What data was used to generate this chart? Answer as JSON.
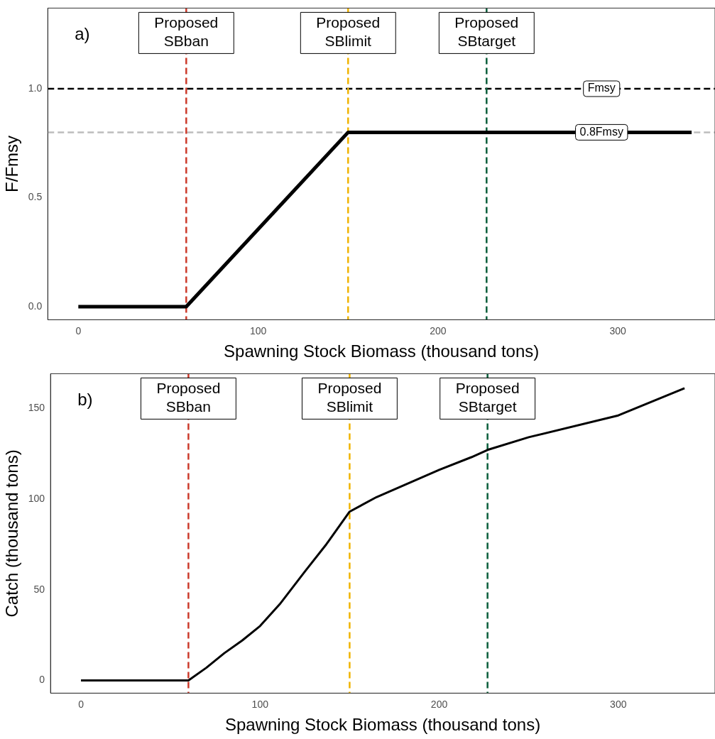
{
  "chart_data": [
    {
      "type": "line",
      "xlabel": "Spawning Stock Biomass (thousand tons)",
      "ylabel": "F/Fmsy",
      "annotations": [
        "a)"
      ],
      "x": [
        0,
        60,
        150,
        341
      ],
      "series": [
        {
          "color": "#000000",
          "values": [
            0,
            0,
            0.8,
            0.8
          ]
        }
      ],
      "xlim": [
        -17,
        354
      ],
      "xticks": [
        0,
        100,
        200,
        300
      ],
      "ylim": [
        -0.06,
        1.37
      ],
      "yticks": [
        {
          "value": 0,
          "label": "0.0"
        },
        {
          "value": 0.5,
          "label": "0.5"
        },
        {
          "value": 1,
          "label": "1.0"
        }
      ],
      "ref_lines": [
        {
          "axis": "y",
          "value": 1,
          "label": "Fmsy",
          "color": "#000000",
          "line_style": "dashed"
        },
        {
          "axis": "y",
          "value": 0.8,
          "label": "0.8Fmsy",
          "color": "#bdbdbd",
          "line_style": "dashed"
        },
        {
          "axis": "x",
          "value": 60,
          "label": "Proposed SBban",
          "color": "#cc3a2b",
          "line_style": "dashed"
        },
        {
          "axis": "x",
          "value": 150,
          "label": "Proposed SBlimit",
          "color": "#f0b400",
          "line_style": "dashed"
        },
        {
          "axis": "x",
          "value": 227,
          "label": "Proposed SBtarget",
          "color": "#0b5e3b",
          "line_style": "dashed"
        }
      ]
    },
    {
      "type": "line",
      "xlabel": "Spawning Stock Biomass (thousand tons)",
      "ylabel": "Catch (thousand tons)",
      "annotations": [
        "b)"
      ],
      "x": [
        0,
        60,
        70,
        80,
        90,
        100,
        111,
        125,
        137,
        150,
        165,
        200,
        218,
        227,
        250,
        300,
        337
      ],
      "series": [
        {
          "color": "#000000",
          "values": [
            0,
            0,
            7,
            15,
            22,
            30,
            42,
            60,
            75,
            93,
            101,
            116,
            123,
            127,
            134,
            146,
            161
          ]
        }
      ],
      "xlim": [
        -17,
        354
      ],
      "xticks": [
        0,
        100,
        200,
        300
      ],
      "ylim": [
        -7,
        169
      ],
      "yticks": [
        0,
        50,
        100,
        150
      ],
      "ref_lines": [
        {
          "axis": "x",
          "value": 60,
          "label": "Proposed SBban",
          "color": "#cc3a2b",
          "line_style": "dashed"
        },
        {
          "axis": "x",
          "value": 150,
          "label": "Proposed SBlimit",
          "color": "#f0b400",
          "line_style": "dashed"
        },
        {
          "axis": "x",
          "value": 227,
          "label": "Proposed SBtarget",
          "color": "#0b5e3b",
          "line_style": "dashed"
        }
      ]
    }
  ]
}
